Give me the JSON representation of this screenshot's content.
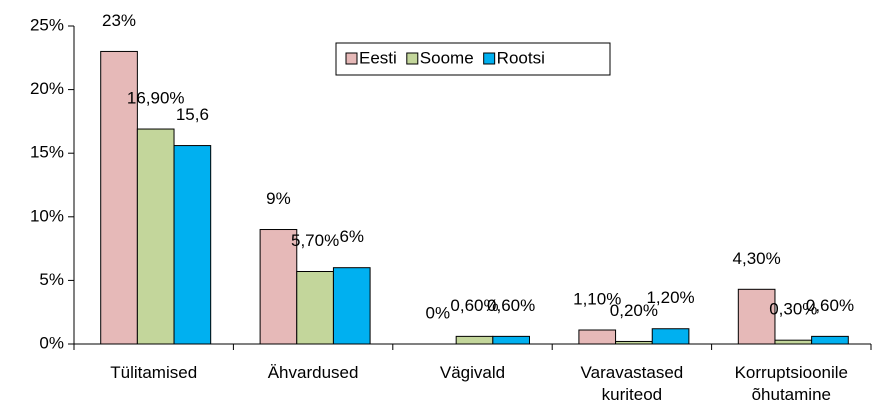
{
  "chart_data": {
    "type": "bar",
    "categories": [
      "Tülitamised",
      "Ähvardused",
      "Vägivald",
      "Varavastased kuriteod",
      "Korruptsioonile õhutamine"
    ],
    "series": [
      {
        "name": "Eesti",
        "color": "#e6b9b8",
        "values": [
          23,
          9,
          0,
          1.1,
          4.3
        ],
        "value_labels": [
          "23%",
          "9%",
          "0%",
          "1,10%",
          "4,30%"
        ]
      },
      {
        "name": "Soome",
        "color": "#c3d69b",
        "values": [
          16.9,
          5.7,
          0.6,
          0.2,
          0.3
        ],
        "value_labels": [
          "16,90%",
          "5,70%",
          "0,60%",
          "0,20%",
          "0,30%"
        ]
      },
      {
        "name": "Rootsi",
        "color": "#00b0f0",
        "values": [
          15.6,
          6,
          0.6,
          1.2,
          0.6
        ],
        "value_labels": [
          "15,6",
          "6%",
          "0,60%",
          "1,20%",
          "0,60%"
        ]
      }
    ],
    "ylim": [
      0,
      25
    ],
    "yticks": [
      {
        "value": 0,
        "label": "0%"
      },
      {
        "value": 5,
        "label": "5%"
      },
      {
        "value": 10,
        "label": "10%"
      },
      {
        "value": 15,
        "label": "15%"
      },
      {
        "value": 20,
        "label": "20%"
      },
      {
        "value": 25,
        "label": "25%"
      }
    ],
    "legend": "top"
  }
}
